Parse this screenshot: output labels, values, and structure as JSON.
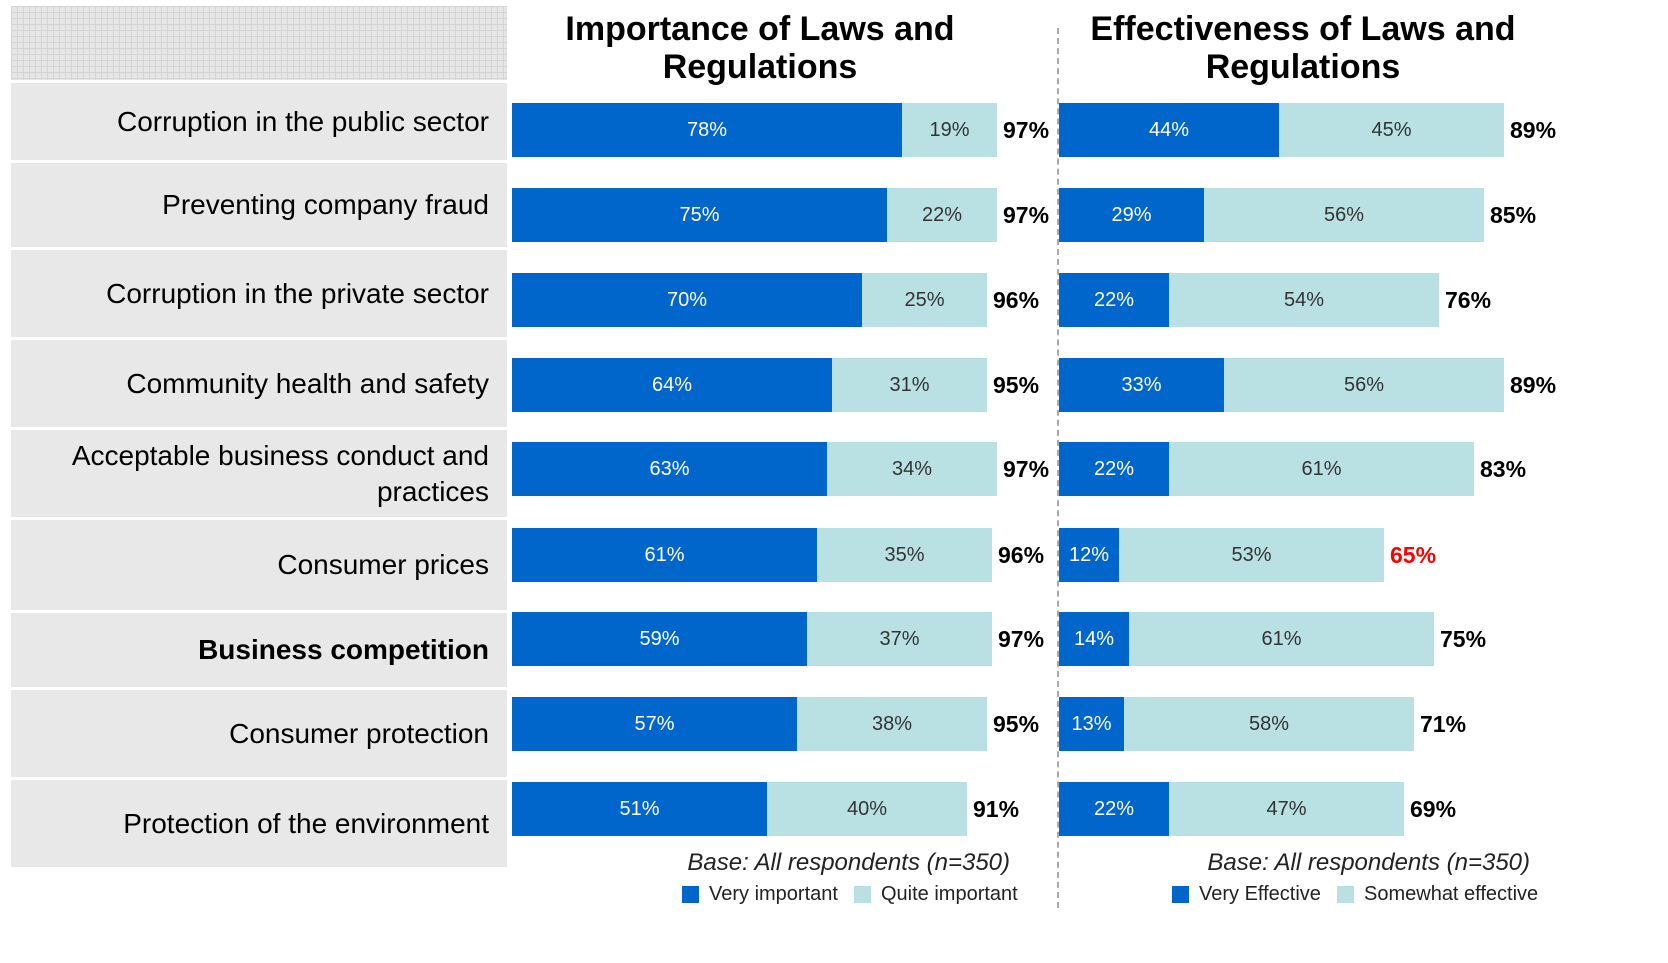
{
  "chart_data": [
    {
      "type": "bar",
      "orientation": "horizontal",
      "stacked": true,
      "title": "Importance of Laws and Regulations",
      "categories": [
        "Corruption in the public sector",
        "Preventing company fraud",
        "Corruption in the private sector",
        "Community health and safety",
        "Acceptable business conduct and practices",
        "Consumer prices",
        "Business competition",
        "Consumer protection",
        "Protection of the environment"
      ],
      "emphasis_category": 6,
      "series": [
        {
          "name": "Very important",
          "color": "#0066cc",
          "values": [
            78,
            75,
            70,
            64,
            63,
            61,
            59,
            57,
            51
          ],
          "value_labels": [
            "78%",
            "75%",
            "70%",
            "64%",
            "63%",
            "61%",
            "59%",
            "57%",
            "51%"
          ]
        },
        {
          "name": "Quite important",
          "color": "#b9e0e3",
          "values": [
            19,
            22,
            25,
            31,
            34,
            35,
            37,
            38,
            40
          ],
          "value_labels": [
            "19%",
            "22%",
            "25%",
            "31%",
            "34%",
            "35%",
            "37%",
            "38%",
            "40%"
          ]
        }
      ],
      "totals": {
        "values": [
          97,
          97,
          96,
          95,
          97,
          96,
          97,
          95,
          91
        ],
        "labels": [
          "97%",
          "97%",
          "96%",
          "95%",
          "97%",
          "96%",
          "97%",
          "95%",
          "91%"
        ]
      },
      "note": "Base: All respondents (n=350)"
    },
    {
      "type": "bar",
      "orientation": "horizontal",
      "stacked": true,
      "title": "Effectiveness of Laws and Regulations",
      "series": [
        {
          "name": "Very Effective",
          "color": "#0066cc",
          "values": [
            44,
            29,
            22,
            33,
            22,
            12,
            14,
            13,
            22
          ],
          "value_labels": [
            "44%",
            "29%",
            "22%",
            "33%",
            "22%",
            "12%",
            "14%",
            "13%",
            "22%"
          ]
        },
        {
          "name": "Somewhat effective",
          "color": "#b9e0e3",
          "values": [
            45,
            56,
            54,
            56,
            61,
            53,
            61,
            58,
            47
          ],
          "value_labels": [
            "45%",
            "56%",
            "54%",
            "56%",
            "61%",
            "53%",
            "61%",
            "58%",
            "47%"
          ]
        }
      ],
      "totals": {
        "values": [
          89,
          85,
          76,
          89,
          83,
          65,
          75,
          71,
          69
        ],
        "labels": [
          "89%",
          "85%",
          "76%",
          "89%",
          "83%",
          "65%",
          "75%",
          "71%",
          "69%"
        ]
      },
      "highlight_total": 5,
      "highlight_color": "#ff0000",
      "note": "Base: All respondents (n=350)"
    }
  ]
}
